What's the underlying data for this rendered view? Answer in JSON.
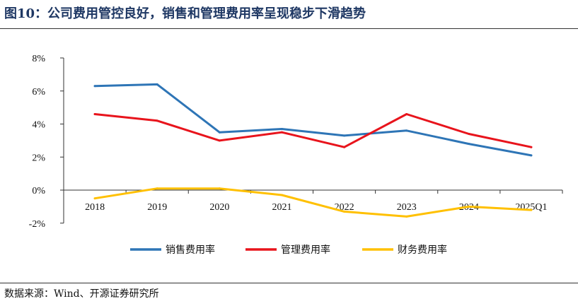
{
  "header": {
    "title": "图10：公司费用管控良好，销售和管理费用率呈现稳步下滑趋势"
  },
  "footer": {
    "source": "数据来源：Wind、开源证券研究所"
  },
  "chart_data": {
    "type": "line",
    "categories": [
      "2018",
      "2019",
      "2020",
      "2021",
      "2022",
      "2023",
      "2024",
      "2025Q1"
    ],
    "series": [
      {
        "name": "销售费用率",
        "color": "#2E75B6",
        "values": [
          6.3,
          6.4,
          3.5,
          3.7,
          3.3,
          3.6,
          2.8,
          2.1
        ]
      },
      {
        "name": "管理费用率",
        "color": "#E8141C",
        "values": [
          4.6,
          4.2,
          3.0,
          3.5,
          2.6,
          4.6,
          3.4,
          2.6
        ]
      },
      {
        "name": "财务费用率",
        "color": "#FFC000",
        "values": [
          -0.5,
          0.1,
          0.1,
          -0.3,
          -1.3,
          -1.6,
          -1.0,
          -1.2
        ]
      }
    ],
    "y_tick_labels": [
      "8%",
      "6%",
      "4%",
      "2%",
      "0%",
      "-2%"
    ],
    "ylim": [
      -2,
      8
    ],
    "y_unit": "%",
    "legend_position": "bottom",
    "grid": false
  }
}
